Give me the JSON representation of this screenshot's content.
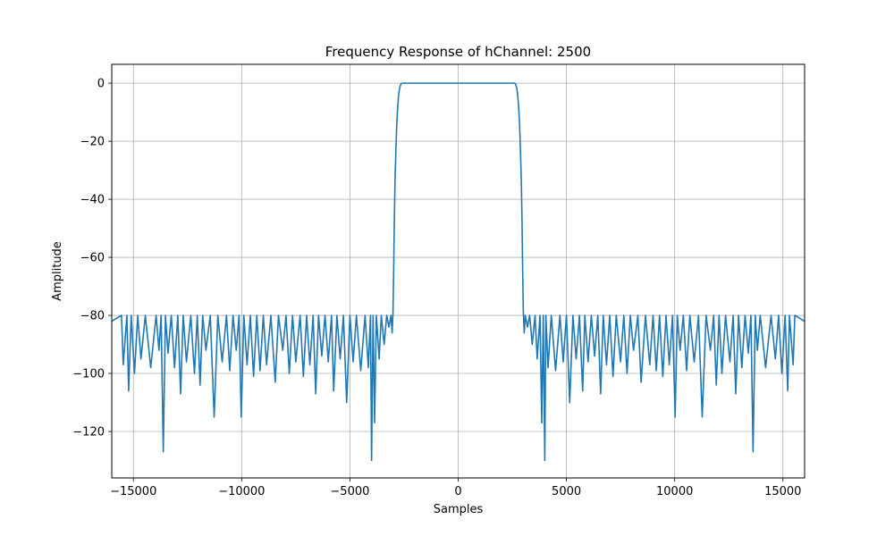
{
  "chart_data": {
    "type": "line",
    "title": "Frequency Response of hChannel: 2500",
    "xlabel": "Samples",
    "ylabel": "Amplitude",
    "xlim": [
      -16000,
      16000
    ],
    "ylim": [
      -136,
      6.5
    ],
    "grid": true,
    "xticks": [
      -15000,
      -10000,
      -5000,
      0,
      5000,
      10000,
      15000
    ],
    "xtick_labels": [
      "−15000",
      "−10000",
      "−5000",
      "0",
      "5000",
      "10000",
      "15000"
    ],
    "yticks": [
      0,
      -20,
      -40,
      -60,
      -80,
      -100,
      -120
    ],
    "ytick_labels": [
      "0",
      "−20",
      "−40",
      "−60",
      "−80",
      "−100",
      "−120"
    ],
    "series": [
      {
        "color": "#1f77b4",
        "points": [
          [
            -16000,
            -82
          ],
          [
            -15550,
            -80
          ],
          [
            -15470,
            -97
          ],
          [
            -15300,
            -80
          ],
          [
            -15220,
            -106
          ],
          [
            -15100,
            -80
          ],
          [
            -14950,
            -100
          ],
          [
            -14800,
            -80
          ],
          [
            -14650,
            -95
          ],
          [
            -14450,
            -80
          ],
          [
            -14200,
            -98
          ],
          [
            -13950,
            -80
          ],
          [
            -13820,
            -92
          ],
          [
            -13720,
            -80
          ],
          [
            -13620,
            -127
          ],
          [
            -13520,
            -80
          ],
          [
            -13400,
            -93
          ],
          [
            -13250,
            -80
          ],
          [
            -13100,
            -98
          ],
          [
            -12950,
            -80
          ],
          [
            -12820,
            -107
          ],
          [
            -12700,
            -80
          ],
          [
            -12550,
            -96
          ],
          [
            -12350,
            -80
          ],
          [
            -12180,
            -100
          ],
          [
            -12050,
            -80
          ],
          [
            -11920,
            -104
          ],
          [
            -11800,
            -80
          ],
          [
            -11650,
            -92
          ],
          [
            -11450,
            -80
          ],
          [
            -11270,
            -115
          ],
          [
            -11100,
            -80
          ],
          [
            -10900,
            -96
          ],
          [
            -10700,
            -80
          ],
          [
            -10550,
            -99
          ],
          [
            -10400,
            -80
          ],
          [
            -10250,
            -92
          ],
          [
            -10120,
            -80
          ],
          [
            -10020,
            -115
          ],
          [
            -9900,
            -80
          ],
          [
            -9750,
            -97
          ],
          [
            -9600,
            -80
          ],
          [
            -9450,
            -101
          ],
          [
            -9300,
            -80
          ],
          [
            -9150,
            -99
          ],
          [
            -9000,
            -80
          ],
          [
            -8850,
            -97
          ],
          [
            -8650,
            -80
          ],
          [
            -8450,
            -103
          ],
          [
            -8300,
            -80
          ],
          [
            -8100,
            -92
          ],
          [
            -7950,
            -80
          ],
          [
            -7800,
            -100
          ],
          [
            -7650,
            -80
          ],
          [
            -7500,
            -96
          ],
          [
            -7300,
            -80
          ],
          [
            -7150,
            -101
          ],
          [
            -7000,
            -80
          ],
          [
            -6850,
            -97
          ],
          [
            -6700,
            -80
          ],
          [
            -6580,
            -107
          ],
          [
            -6450,
            -80
          ],
          [
            -6300,
            -94
          ],
          [
            -6150,
            -80
          ],
          [
            -6000,
            -96
          ],
          [
            -5850,
            -80
          ],
          [
            -5750,
            -106
          ],
          [
            -5600,
            -80
          ],
          [
            -5450,
            -95
          ],
          [
            -5300,
            -80
          ],
          [
            -5150,
            -110
          ],
          [
            -5000,
            -80
          ],
          [
            -4850,
            -96
          ],
          [
            -4700,
            -80
          ],
          [
            -4500,
            -99
          ],
          [
            -4300,
            -80
          ],
          [
            -4150,
            -98
          ],
          [
            -4050,
            -80
          ],
          [
            -4000,
            -130
          ],
          [
            -3930,
            -80
          ],
          [
            -3860,
            -117
          ],
          [
            -3780,
            -80
          ],
          [
            -3650,
            -95
          ],
          [
            -3550,
            -80
          ],
          [
            -3420,
            -90
          ],
          [
            -3300,
            -80
          ],
          [
            -3200,
            -84
          ],
          [
            -3100,
            -80
          ],
          [
            -3050,
            -86
          ],
          [
            -3010,
            -79
          ],
          [
            -2980,
            -65
          ],
          [
            -2950,
            -48
          ],
          [
            -2920,
            -35
          ],
          [
            -2880,
            -24
          ],
          [
            -2840,
            -15
          ],
          [
            -2800,
            -9
          ],
          [
            -2750,
            -4
          ],
          [
            -2700,
            -1.5
          ],
          [
            -2650,
            -0.3
          ],
          [
            -2600,
            0
          ],
          [
            -2300,
            0
          ],
          [
            -2000,
            0
          ],
          [
            -1700,
            0
          ],
          [
            -1400,
            0
          ],
          [
            -1100,
            0
          ],
          [
            -800,
            0
          ],
          [
            -500,
            0
          ],
          [
            -200,
            0
          ],
          [
            0,
            0
          ],
          [
            200,
            0
          ],
          [
            500,
            0
          ],
          [
            800,
            0
          ],
          [
            1100,
            0
          ],
          [
            1400,
            0
          ],
          [
            1700,
            0
          ],
          [
            2000,
            0
          ],
          [
            2300,
            0
          ],
          [
            2600,
            0
          ],
          [
            2650,
            -0.3
          ],
          [
            2700,
            -1.5
          ],
          [
            2750,
            -4
          ],
          [
            2800,
            -9
          ],
          [
            2840,
            -15
          ],
          [
            2880,
            -24
          ],
          [
            2920,
            -35
          ],
          [
            2950,
            -48
          ],
          [
            2980,
            -65
          ],
          [
            3010,
            -79
          ],
          [
            3050,
            -86
          ],
          [
            3100,
            -80
          ],
          [
            3200,
            -84
          ],
          [
            3300,
            -80
          ],
          [
            3420,
            -90
          ],
          [
            3550,
            -80
          ],
          [
            3650,
            -95
          ],
          [
            3780,
            -80
          ],
          [
            3860,
            -117
          ],
          [
            3930,
            -80
          ],
          [
            4000,
            -130
          ],
          [
            4050,
            -80
          ],
          [
            4150,
            -98
          ],
          [
            4300,
            -80
          ],
          [
            4500,
            -99
          ],
          [
            4700,
            -80
          ],
          [
            4850,
            -96
          ],
          [
            5000,
            -80
          ],
          [
            5150,
            -110
          ],
          [
            5300,
            -80
          ],
          [
            5450,
            -95
          ],
          [
            5600,
            -80
          ],
          [
            5750,
            -106
          ],
          [
            5850,
            -80
          ],
          [
            6000,
            -96
          ],
          [
            6150,
            -80
          ],
          [
            6300,
            -94
          ],
          [
            6450,
            -80
          ],
          [
            6580,
            -107
          ],
          [
            6700,
            -80
          ],
          [
            6850,
            -97
          ],
          [
            7000,
            -80
          ],
          [
            7150,
            -101
          ],
          [
            7300,
            -80
          ],
          [
            7500,
            -96
          ],
          [
            7650,
            -80
          ],
          [
            7800,
            -100
          ],
          [
            7950,
            -80
          ],
          [
            8100,
            -92
          ],
          [
            8300,
            -80
          ],
          [
            8450,
            -103
          ],
          [
            8650,
            -80
          ],
          [
            8850,
            -97
          ],
          [
            9000,
            -80
          ],
          [
            9150,
            -99
          ],
          [
            9300,
            -80
          ],
          [
            9450,
            -101
          ],
          [
            9600,
            -80
          ],
          [
            9750,
            -97
          ],
          [
            9900,
            -80
          ],
          [
            10020,
            -115
          ],
          [
            10120,
            -80
          ],
          [
            10250,
            -92
          ],
          [
            10400,
            -80
          ],
          [
            10550,
            -99
          ],
          [
            10700,
            -80
          ],
          [
            10900,
            -96
          ],
          [
            11100,
            -80
          ],
          [
            11270,
            -115
          ],
          [
            11450,
            -80
          ],
          [
            11650,
            -92
          ],
          [
            11800,
            -80
          ],
          [
            11920,
            -104
          ],
          [
            12050,
            -80
          ],
          [
            12180,
            -100
          ],
          [
            12350,
            -80
          ],
          [
            12550,
            -96
          ],
          [
            12700,
            -80
          ],
          [
            12820,
            -107
          ],
          [
            12950,
            -80
          ],
          [
            13100,
            -98
          ],
          [
            13250,
            -80
          ],
          [
            13400,
            -93
          ],
          [
            13520,
            -80
          ],
          [
            13620,
            -127
          ],
          [
            13720,
            -80
          ],
          [
            13820,
            -92
          ],
          [
            13950,
            -80
          ],
          [
            14200,
            -98
          ],
          [
            14450,
            -80
          ],
          [
            14650,
            -95
          ],
          [
            14800,
            -80
          ],
          [
            14950,
            -100
          ],
          [
            15100,
            -80
          ],
          [
            15220,
            -106
          ],
          [
            15300,
            -80
          ],
          [
            15470,
            -97
          ],
          [
            15550,
            -80
          ],
          [
            16000,
            -82
          ]
        ]
      }
    ]
  }
}
